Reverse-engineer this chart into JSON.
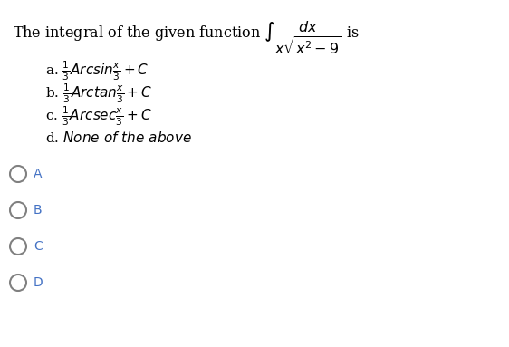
{
  "bg_color": "#ffffff",
  "text_color": "#000000",
  "radio_label_color": "#4472C4",
  "radio_circle_color": "#808080",
  "title_line1": "The integral of the given function $\\int \\dfrac{dx}{x\\sqrt{x^2-9}}$ is",
  "option_a": "a. $\\frac{1}{3}Arcsin\\frac{x}{3} + C$",
  "option_b": "b. $\\frac{1}{3}Arctan\\frac{x}{3} + C$",
  "option_c": "c. $\\frac{1}{3}Arcsec\\frac{x}{3} + C$",
  "option_d": "d. $\\mathit{None\\ of\\ the\\ above}$",
  "radio_labels": [
    "A",
    "B",
    "C",
    "D"
  ],
  "figsize": [
    5.62,
    3.83
  ],
  "dpi": 100
}
